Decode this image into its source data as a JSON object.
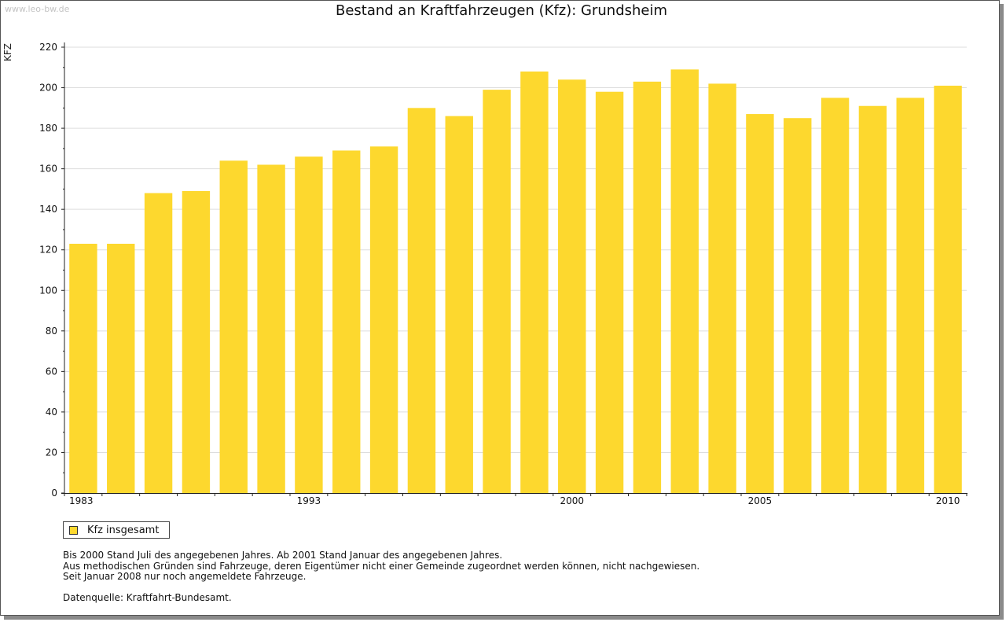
{
  "header": {
    "watermark": "www.leo-bw.de",
    "title": "Bestand an Kraftfahrzeugen (Kfz): Grundsheim"
  },
  "colors": {
    "bar": "#fdd82e",
    "grid": "#dddddd",
    "axis": "#222222"
  },
  "chart_data": {
    "type": "bar",
    "title": "Bestand an Kraftfahrzeugen (Kfz): Grundsheim",
    "ylabel": "KFZ",
    "xlabel": "",
    "ylim": [
      0,
      220
    ],
    "yticks": [
      0,
      20,
      40,
      60,
      80,
      100,
      120,
      140,
      160,
      180,
      200,
      220
    ],
    "grid": true,
    "legend_position": "bottom-left",
    "categories": [
      1983,
      1988,
      1989,
      1990,
      1991,
      1992,
      1993,
      1994,
      1995,
      1996,
      1997,
      1998,
      1999,
      2000,
      2001,
      2002,
      2003,
      2004,
      2005,
      2006,
      2007,
      2008,
      2009,
      2010
    ],
    "x_tick_labels": [
      "1983",
      "1993",
      "2000",
      "2005",
      "2010"
    ],
    "series": [
      {
        "name": "Kfz insgesamt",
        "values": [
          123,
          123,
          148,
          149,
          164,
          162,
          166,
          169,
          171,
          190,
          186,
          199,
          208,
          204,
          198,
          203,
          209,
          202,
          187,
          185,
          195,
          191,
          195,
          201
        ]
      }
    ]
  },
  "legend": {
    "label": "Kfz insgesamt"
  },
  "notes": [
    "Bis 2000 Stand Juli des angegebenen Jahres. Ab 2001 Stand Januar des angegebenen Jahres.",
    "Aus methodischen Gründen sind Fahrzeuge, deren Eigentümer nicht einer Gemeinde zugeordnet werden können, nicht nachgewiesen.",
    "Seit Januar 2008 nur noch angemeldete Fahrzeuge."
  ],
  "source": "Datenquelle: Kraftfahrt-Bundesamt."
}
